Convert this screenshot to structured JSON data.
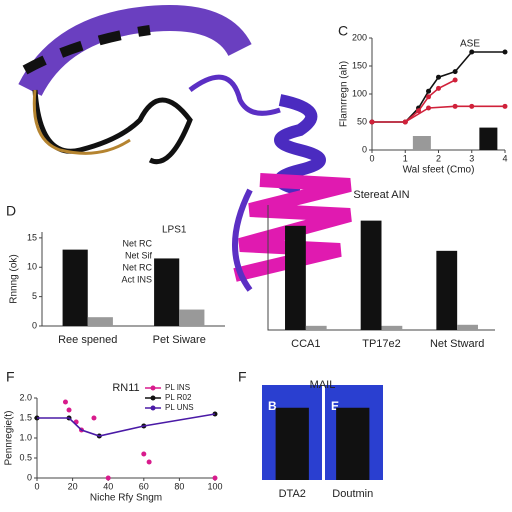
{
  "panel_labels": [
    "C",
    "D",
    "F",
    "F"
  ],
  "chart_data": [
    {
      "type": "line",
      "annotation": "ASE",
      "y_label": "Flamrregn (ah)",
      "x_label": "Wal sfeet (Cmo)",
      "xlim": [
        0,
        4
      ],
      "xticks": [
        0,
        1,
        2,
        3,
        4
      ],
      "ylim": [
        0,
        200
      ],
      "yticks": [
        0,
        50,
        100,
        150,
        200
      ],
      "series": [
        {
          "color": "#111111",
          "x": [
            0,
            1,
            1.4,
            1.7,
            2,
            2.5,
            3,
            4
          ],
          "values": [
            50,
            50,
            75,
            105,
            130,
            140,
            175,
            175
          ]
        },
        {
          "color": "#d0213a",
          "x": [
            0,
            1,
            1.4,
            1.7,
            2,
            2.5
          ],
          "values": [
            50,
            50,
            70,
            95,
            110,
            125
          ]
        },
        {
          "color": "#d0213a",
          "x": [
            1,
            1.7,
            2.5,
            3,
            4
          ],
          "values": [
            50,
            75,
            78,
            78,
            78
          ]
        },
        {
          "color": "#999999",
          "kind": "bar",
          "x": [
            1.5
          ],
          "values": [
            25
          ]
        },
        {
          "color": "#111111",
          "kind": "bar",
          "x": [
            3.5
          ],
          "values": [
            40
          ]
        }
      ]
    },
    {
      "type": "bar",
      "y_label": "Rnnng (ok)",
      "annotation": "LPS1",
      "notes": [
        "Net RC",
        "Net Sif",
        "Net RC",
        "Act INS"
      ],
      "categories": [
        "Ree spened",
        "Pet Siware"
      ],
      "ylim": [
        0,
        16
      ],
      "yticks": [
        0,
        5,
        10,
        15
      ],
      "series": [
        {
          "color": "#111111",
          "values": [
            13,
            11.5
          ]
        },
        {
          "color": "#999999",
          "values": [
            1.5,
            2.8
          ]
        }
      ]
    },
    {
      "type": "bar",
      "title": "Stereat AIN",
      "categories": [
        "CCA1",
        "TP17e2",
        "Net Stward"
      ],
      "ylim": [
        0,
        12
      ],
      "series": [
        {
          "color": "#111111",
          "values": [
            10,
            10.5,
            7.6
          ]
        },
        {
          "color": "#999999",
          "values": [
            0.4,
            0.4,
            0.5
          ]
        }
      ]
    },
    {
      "type": "line",
      "title": "RN11",
      "x_label": "Niche Rfy Sngm",
      "y_label": "Pennregie(t)",
      "xlim": [
        0,
        100
      ],
      "xticks": [
        0,
        20,
        40,
        60,
        80,
        100
      ],
      "ylim": [
        0,
        2
      ],
      "yticks": [
        0,
        0.5,
        {
          "value": 1,
          "label": "1.0"
        },
        1.5,
        {
          "value": 2,
          "label": "2.0"
        }
      ],
      "legend": "top-right",
      "series": [
        {
          "name": "PL INS",
          "color": "#d81b8c",
          "kind": "points",
          "x": [
            16,
            18,
            22,
            25,
            32,
            60,
            63,
            40,
            100
          ],
          "values": [
            1.9,
            1.7,
            1.4,
            1.2,
            1.5,
            0.6,
            0.4,
            0,
            0
          ]
        },
        {
          "name": "PL R02",
          "color": "#111111",
          "kind": "points",
          "x": [
            0,
            18,
            35,
            60,
            100
          ],
          "values": [
            1.5,
            1.5,
            1.05,
            1.3,
            1.6
          ]
        },
        {
          "name": "PL UNS",
          "color": "#4a1aa6",
          "x": [
            0,
            18,
            25,
            35,
            60,
            100
          ],
          "values": [
            1.5,
            1.5,
            1.2,
            1.05,
            1.3,
            1.6
          ]
        }
      ]
    },
    {
      "type": "bar",
      "title": "MAIL",
      "insets": [
        "B",
        "E"
      ],
      "categories": [
        "DTA2",
        "Doutmin"
      ],
      "ylim": [
        0,
        1
      ],
      "series": [
        {
          "color": "#111111",
          "values": [
            0.85,
            0.85
          ]
        }
      ]
    }
  ]
}
